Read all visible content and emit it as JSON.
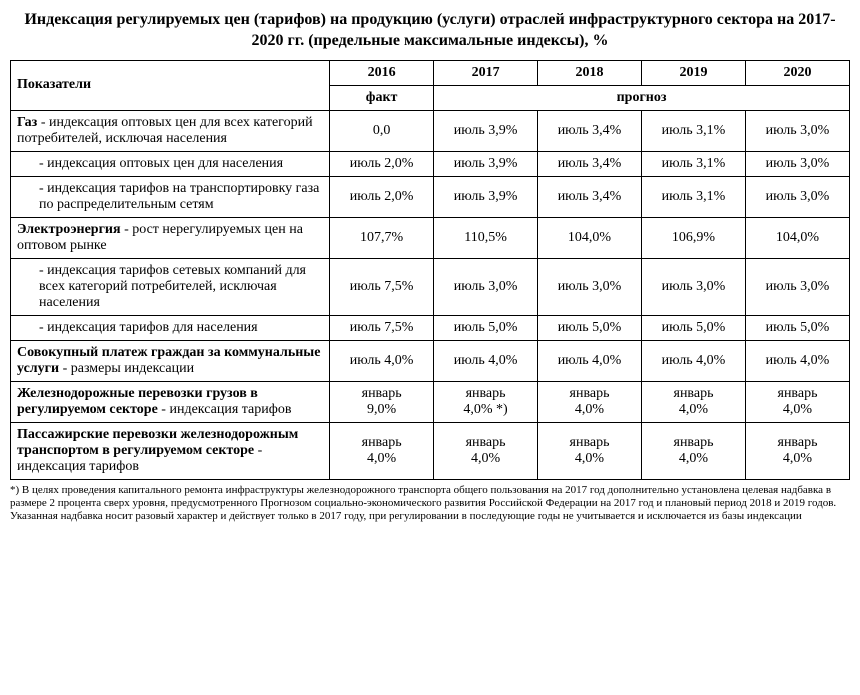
{
  "title": "Индексация  регулируемых цен (тарифов) на продукцию (услуги) отраслей  инфраструктурного сектора  на   2017-2020 гг. (предельные максимальные индексы), %",
  "headers": {
    "indicators": "Показатели",
    "y2016": "2016",
    "y2017": "2017",
    "y2018": "2018",
    "y2019": "2019",
    "y2020": "2020",
    "fact": "факт",
    "forecast": "прогноз"
  },
  "rows": [
    {
      "label": "Газ  - индексация оптовых цен для всех категорий потребителей, исключая населения",
      "boldPrefix": "Газ",
      "v": [
        "0,0",
        "июль 3,9%",
        "июль 3,4%",
        "июль 3,1%",
        "июль 3,0%"
      ]
    },
    {
      "label": "     - индексация оптовых цен для населения",
      "sub": true,
      "v": [
        "июль 2,0%",
        "июль 3,9%",
        "июль 3,4%",
        "июль 3,1%",
        "июль 3,0%"
      ]
    },
    {
      "label": "     - индексация тарифов на транспортировку газа по распределительным сетям",
      "sub": true,
      "v": [
        "июль 2,0%",
        "июль 3,9%",
        "июль 3,4%",
        "июль 3,1%",
        "июль 3,0%"
      ]
    },
    {
      "label": "Электроэнергия - рост нерегулируемых цен на оптовом рынке",
      "boldPrefix": "Электроэнергия",
      "v": [
        "107,7%",
        "110,5%",
        "104,0%",
        "106,9%",
        "104,0%"
      ]
    },
    {
      "label": "     - индексация тарифов сетевых компаний для  всех категорий потребителей, исключая населения",
      "sub": true,
      "v": [
        "июль 7,5%",
        "июль 3,0%",
        "июль 3,0%",
        "июль 3,0%",
        "июль 3,0%"
      ]
    },
    {
      "label": "     - индексация тарифов  для населения",
      "sub": true,
      "v": [
        "июль 7,5%",
        "июль 5,0%",
        "июль 5,0%",
        "июль 5,0%",
        "июль 5,0%"
      ]
    },
    {
      "label": "Совокупный платеж граждан за коммунальные услуги - размеры индексации",
      "boldPrefix": "Совокупный платеж граждан за коммунальные услуги",
      "v": [
        "июль 4,0%",
        "июль 4,0%",
        "июль 4,0%",
        "июль 4,0%",
        "июль 4,0%"
      ]
    },
    {
      "label": "Железнодорожные перевозки грузов в регулируемом секторе -  индексация тарифов",
      "boldPrefix": "Железнодорожные перевозки грузов в регулируемом секторе",
      "stacked": true,
      "v": [
        "январь 9,0%",
        "январь 4,0% *)",
        "январь 4,0%",
        "январь 4,0%",
        "январь 4,0%"
      ]
    },
    {
      "label": "Пассажирские перевозки железнодорожным транспортом  в регулируемом секторе - индексация тарифов",
      "boldPrefix": "Пассажирские перевозки железнодорожным транспортом  в регулируемом секторе",
      "stacked": true,
      "v": [
        "январь 4,0%",
        "январь 4,0%",
        "январь 4,0%",
        "январь 4,0%",
        "январь 4,0%"
      ]
    }
  ],
  "footnote": "*) В целях проведения капитального ремонта инфраструктуры железнодорожного транспорта общего пользования на 2017 год дополнительно установлена целевая надбавка в размере 2 процента сверх уровня, предусмотренного  Прогнозом социально-экономического развития Российской Федерации на 2017 год и плановый период 2018 и 2019 годов. Указанная надбавка носит разовый характер и действует только в 2017 году, при регулировании в последующие годы не учитывается и исключается из базы индексации",
  "style": {
    "font": "Times New Roman",
    "border_color": "#000000",
    "background": "#ffffff",
    "text_color": "#000000",
    "title_fontsize": 16,
    "table_fontsize": 14,
    "footnote_fontsize": 11
  }
}
